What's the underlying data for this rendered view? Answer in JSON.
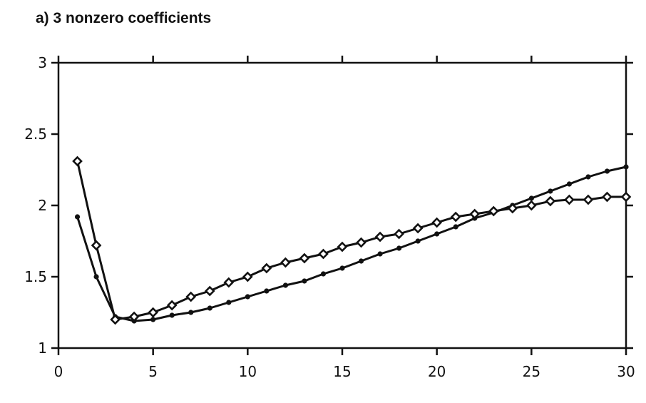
{
  "chart_data": {
    "type": "line",
    "title": "a) 3 nonzero coefficients",
    "xlabel": "",
    "ylabel": "",
    "xlim": [
      0,
      30
    ],
    "ylim": [
      1,
      3
    ],
    "grid": false,
    "x_ticks": [
      "0",
      "5",
      "10",
      "15",
      "20",
      "25",
      "30"
    ],
    "y_ticks": [
      "1",
      "1.5",
      "2",
      "2.5",
      "3"
    ],
    "x": [
      1,
      2,
      3,
      4,
      5,
      6,
      7,
      8,
      9,
      10,
      11,
      12,
      13,
      14,
      15,
      16,
      17,
      18,
      19,
      20,
      21,
      22,
      23,
      24,
      25,
      26,
      27,
      28,
      29,
      30
    ],
    "series": [
      {
        "marker": "dot",
        "values": [
          1.92,
          1.5,
          1.22,
          1.19,
          1.2,
          1.23,
          1.25,
          1.28,
          1.32,
          1.36,
          1.4,
          1.44,
          1.47,
          1.52,
          1.56,
          1.61,
          1.66,
          1.7,
          1.75,
          1.8,
          1.85,
          1.91,
          1.95,
          2.0,
          2.05,
          2.1,
          2.15,
          2.2,
          2.24,
          2.27
        ]
      },
      {
        "marker": "diamond",
        "values": [
          2.31,
          1.72,
          1.2,
          1.22,
          1.25,
          1.3,
          1.36,
          1.4,
          1.46,
          1.5,
          1.56,
          1.6,
          1.63,
          1.66,
          1.71,
          1.74,
          1.78,
          1.8,
          1.84,
          1.88,
          1.92,
          1.94,
          1.96,
          1.98,
          2.0,
          2.03,
          2.04,
          2.04,
          2.06,
          2.06
        ]
      }
    ],
    "line_color": "#111111"
  }
}
